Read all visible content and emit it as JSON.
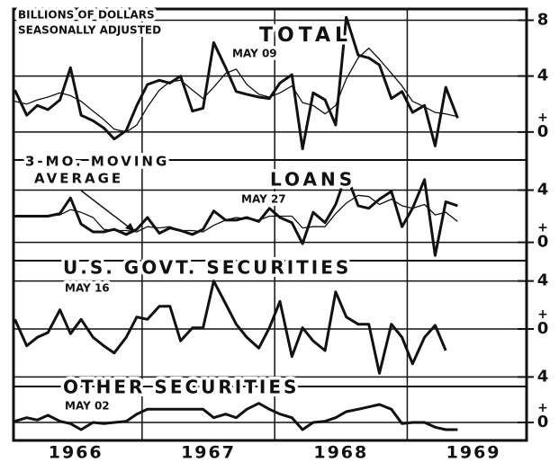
{
  "chart_data": [
    {
      "type": "line",
      "title": "TOTAL",
      "date_label": "MAY 09",
      "units_label": [
        "BILLIONS OF DOLLARS",
        "SEASONALLY ADJUSTED"
      ],
      "ylim": [
        -2,
        8.8
      ],
      "yticks": [
        0,
        4,
        8
      ],
      "sign_label": "+",
      "grid": true,
      "x": [
        1966.04,
        1966.13,
        1966.21,
        1966.29,
        1966.38,
        1966.46,
        1966.54,
        1966.63,
        1966.71,
        1966.79,
        1966.88,
        1966.96,
        1967.04,
        1967.13,
        1967.21,
        1967.29,
        1967.38,
        1967.46,
        1967.54,
        1967.63,
        1967.71,
        1967.79,
        1967.88,
        1967.96,
        1968.04,
        1968.13,
        1968.21,
        1968.29,
        1968.38,
        1968.46,
        1968.54,
        1968.63,
        1968.71,
        1968.79,
        1968.88,
        1968.96,
        1969.04,
        1969.13,
        1969.21,
        1969.29,
        1969.38
      ],
      "series": [
        {
          "color": "#111111",
          "width": 3,
          "values": [
            3.0,
            1.2,
            1.9,
            1.6,
            2.3,
            4.6,
            1.2,
            0.8,
            0.3,
            -0.5,
            0.1,
            1.9,
            3.4,
            3.7,
            3.5,
            4.0,
            1.5,
            1.7,
            6.4,
            4.6,
            2.9,
            2.7,
            2.5,
            2.4,
            3.5,
            4.1,
            -1.2,
            2.8,
            2.3,
            0.5,
            8.2,
            5.5,
            5.3,
            4.8,
            2.4,
            2.9,
            1.4,
            1.9,
            -1.0,
            3.2,
            1.0
          ]
        },
        {
          "color": "#111111",
          "width": 1.3,
          "values": [
            2.2,
            2.0,
            2.3,
            2.5,
            2.8,
            2.6,
            2.2,
            1.5,
            0.9,
            0.2,
            0.0,
            0.5,
            1.8,
            3.0,
            3.6,
            3.7,
            3.0,
            2.4,
            3.2,
            4.2,
            4.5,
            3.4,
            2.7,
            2.5,
            2.8,
            3.3,
            2.1,
            1.9,
            1.3,
            1.9,
            3.8,
            5.3,
            6.0,
            5.2,
            4.2,
            3.3,
            2.2,
            1.8,
            1.4,
            1.3,
            1.1
          ]
        }
      ]
    },
    {
      "type": "line",
      "title": "LOANS",
      "date_label": "MAY 27",
      "annotation": [
        "3-MO. MOVING",
        "AVERAGE"
      ],
      "ylim": [
        -1.4,
        6.3
      ],
      "yticks": [
        0,
        4
      ],
      "sign_label": "+",
      "grid": true,
      "x": [
        1966.04,
        1966.13,
        1966.21,
        1966.29,
        1966.38,
        1966.46,
        1966.54,
        1966.63,
        1966.71,
        1966.79,
        1966.88,
        1966.96,
        1967.04,
        1967.13,
        1967.21,
        1967.29,
        1967.38,
        1967.46,
        1967.54,
        1967.63,
        1967.71,
        1967.79,
        1967.88,
        1967.96,
        1968.04,
        1968.13,
        1968.21,
        1968.29,
        1968.38,
        1968.46,
        1968.54,
        1968.63,
        1968.71,
        1968.79,
        1968.88,
        1968.96,
        1969.04,
        1969.13,
        1969.21,
        1969.29,
        1969.38
      ],
      "series": [
        {
          "color": "#111111",
          "width": 3,
          "values": [
            2.0,
            2.0,
            2.0,
            2.0,
            2.2,
            3.4,
            1.4,
            0.8,
            0.8,
            1.0,
            0.6,
            1.0,
            1.9,
            0.7,
            1.1,
            0.9,
            0.6,
            1.0,
            2.4,
            1.7,
            1.7,
            1.9,
            1.6,
            2.6,
            1.9,
            1.5,
            -0.1,
            2.3,
            1.5,
            2.9,
            5.2,
            2.8,
            2.6,
            3.3,
            3.9,
            1.2,
            2.6,
            4.8,
            -1.0,
            3.1,
            2.8
          ]
        },
        {
          "color": "#111111",
          "width": 1.3,
          "values": [
            2.0,
            2.0,
            2.0,
            2.0,
            2.1,
            2.5,
            2.3,
            1.9,
            1.0,
            0.9,
            0.9,
            0.8,
            1.2,
            1.1,
            1.2,
            0.9,
            0.9,
            0.8,
            1.3,
            1.7,
            1.9,
            1.8,
            1.7,
            2.0,
            2.0,
            2.0,
            1.1,
            1.2,
            1.2,
            2.2,
            3.0,
            3.6,
            3.5,
            2.9,
            3.3,
            2.8,
            2.6,
            2.9,
            2.1,
            2.3,
            1.6
          ]
        }
      ]
    },
    {
      "type": "line",
      "title": "U.S. GOVT. SECURITIES",
      "date_label": "MAY 16",
      "ylim": [
        -4.8,
        5.7
      ],
      "yticks": [
        {
          "value": -4,
          "label": "4"
        },
        0,
        4
      ],
      "sign_label": "+",
      "grid": true,
      "x": [
        1966.04,
        1966.13,
        1966.21,
        1966.29,
        1966.38,
        1966.46,
        1966.54,
        1966.63,
        1966.71,
        1966.79,
        1966.88,
        1966.96,
        1967.04,
        1967.13,
        1967.21,
        1967.29,
        1967.38,
        1967.46,
        1967.54,
        1967.63,
        1967.71,
        1967.79,
        1967.88,
        1967.96,
        1968.04,
        1968.13,
        1968.21,
        1968.29,
        1968.38,
        1968.46,
        1968.54,
        1968.63,
        1968.71,
        1968.79,
        1968.88,
        1968.96,
        1969.04,
        1969.13,
        1969.21,
        1969.29
      ],
      "series": [
        {
          "color": "#111111",
          "width": 3,
          "values": [
            0.8,
            -1.4,
            -0.7,
            -0.3,
            1.6,
            -0.4,
            0.8,
            -0.7,
            -1.4,
            -2.0,
            -0.7,
            1.0,
            0.8,
            1.9,
            1.9,
            -1.0,
            0.1,
            0.1,
            4.0,
            2.1,
            0.4,
            -0.7,
            -1.6,
            0.1,
            2.3,
            -2.3,
            0.1,
            -1.0,
            -1.8,
            3.1,
            1.0,
            0.4,
            0.4,
            -3.7,
            0.4,
            -0.7,
            -2.9,
            -0.7,
            0.3,
            -1.8
          ]
        }
      ]
    },
    {
      "type": "line",
      "title": "OTHER SECURITIES",
      "date_label": "MAY 02",
      "ylim": [
        -1.5,
        3
      ],
      "yticks": [
        0
      ],
      "sign_label": "+",
      "grid": true,
      "xlim": [
        1966.03,
        1969.9
      ],
      "vgrid": [
        1967,
        1968,
        1969
      ],
      "xticks": [
        {
          "value": 1966.5,
          "label": "1966"
        },
        {
          "value": 1967.5,
          "label": "1967"
        },
        {
          "value": 1968.5,
          "label": "1968"
        },
        {
          "value": 1969.5,
          "label": "1969"
        }
      ],
      "x": [
        1966.04,
        1966.13,
        1966.21,
        1966.29,
        1966.38,
        1966.46,
        1966.54,
        1966.63,
        1966.71,
        1966.79,
        1966.88,
        1966.96,
        1967.04,
        1967.13,
        1967.21,
        1967.29,
        1967.38,
        1967.46,
        1967.54,
        1967.63,
        1967.71,
        1967.79,
        1967.88,
        1967.96,
        1968.04,
        1968.13,
        1968.21,
        1968.29,
        1968.38,
        1968.46,
        1968.54,
        1968.63,
        1968.71,
        1968.79,
        1968.88,
        1968.96,
        1969.04,
        1969.13,
        1969.21,
        1969.29,
        1969.38
      ],
      "series": [
        {
          "color": "#111111",
          "width": 3,
          "values": [
            0.1,
            0.4,
            0.2,
            0.6,
            0.1,
            -0.1,
            -0.6,
            0,
            -0.1,
            0,
            0.1,
            0.7,
            1.1,
            1.1,
            1.1,
            1.1,
            1.1,
            1.1,
            0.4,
            0.7,
            0.4,
            1.1,
            1.6,
            1.1,
            0.7,
            0.4,
            -0.6,
            0,
            0.1,
            0.4,
            0.9,
            1.1,
            1.3,
            1.5,
            1.1,
            -0.1,
            0,
            0,
            -0.4,
            -0.6,
            -0.6
          ]
        }
      ]
    }
  ]
}
